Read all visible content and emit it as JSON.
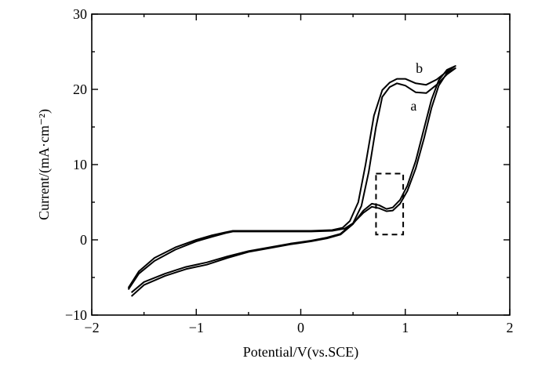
{
  "chart_data": {
    "type": "line",
    "xlabel": "Potential/V(vs.SCE)",
    "ylabel": "Current/(mA·cm⁻²)",
    "xlim": [
      -2,
      2
    ],
    "ylim": [
      -10,
      30
    ],
    "xticks": [
      -2,
      -1,
      0,
      1,
      2
    ],
    "xtick_labels": [
      "−2",
      "−1",
      "0",
      "1",
      "2"
    ],
    "yticks": [
      -10,
      0,
      10,
      20,
      30
    ],
    "ytick_labels": [
      "−10",
      "0",
      "10",
      "20",
      "30"
    ],
    "grid": false,
    "series": [
      {
        "name": "a",
        "forward": [
          [
            -1.62,
            -7.0
          ],
          [
            -1.5,
            -5.6
          ],
          [
            -1.3,
            -4.5
          ],
          [
            -1.1,
            -3.6
          ],
          [
            -0.9,
            -3.0
          ],
          [
            -0.7,
            -2.2
          ],
          [
            -0.5,
            -1.5
          ],
          [
            -0.3,
            -1.0
          ],
          [
            -0.1,
            -0.5
          ],
          [
            0.1,
            -0.1
          ],
          [
            0.25,
            0.3
          ],
          [
            0.38,
            0.8
          ],
          [
            0.5,
            2.2
          ],
          [
            0.6,
            3.6
          ],
          [
            0.68,
            4.4
          ],
          [
            0.75,
            4.2
          ],
          [
            0.82,
            3.8
          ],
          [
            0.88,
            3.9
          ],
          [
            0.95,
            4.8
          ],
          [
            1.02,
            6.5
          ],
          [
            1.1,
            9.5
          ],
          [
            1.18,
            13.5
          ],
          [
            1.25,
            17.5
          ],
          [
            1.32,
            20.5
          ],
          [
            1.4,
            22.2
          ],
          [
            1.48,
            22.8
          ]
        ],
        "reverse": [
          [
            1.48,
            22.8
          ],
          [
            1.4,
            22.0
          ],
          [
            1.3,
            20.6
          ],
          [
            1.2,
            19.5
          ],
          [
            1.1,
            19.6
          ],
          [
            1.0,
            20.5
          ],
          [
            0.92,
            20.8
          ],
          [
            0.85,
            20.3
          ],
          [
            0.78,
            19.0
          ],
          [
            0.72,
            15.0
          ],
          [
            0.65,
            9.0
          ],
          [
            0.58,
            4.5
          ],
          [
            0.5,
            2.2
          ],
          [
            0.42,
            1.5
          ],
          [
            0.3,
            1.2
          ],
          [
            0.1,
            1.1
          ],
          [
            -0.2,
            1.1
          ],
          [
            -0.5,
            1.1
          ],
          [
            -0.65,
            1.1
          ],
          [
            -0.72,
            0.9
          ],
          [
            -0.85,
            0.4
          ],
          [
            -1.0,
            -0.2
          ],
          [
            -1.2,
            -1.3
          ],
          [
            -1.4,
            -2.8
          ],
          [
            -1.55,
            -4.5
          ],
          [
            -1.65,
            -6.6
          ]
        ]
      },
      {
        "name": "b",
        "forward": [
          [
            -1.62,
            -7.5
          ],
          [
            -1.5,
            -6.0
          ],
          [
            -1.3,
            -4.8
          ],
          [
            -1.1,
            -3.9
          ],
          [
            -0.9,
            -3.3
          ],
          [
            -0.7,
            -2.4
          ],
          [
            -0.5,
            -1.6
          ],
          [
            -0.3,
            -1.1
          ],
          [
            -0.1,
            -0.6
          ],
          [
            0.1,
            -0.2
          ],
          [
            0.25,
            0.2
          ],
          [
            0.38,
            0.7
          ],
          [
            0.5,
            2.1
          ],
          [
            0.6,
            3.9
          ],
          [
            0.68,
            4.8
          ],
          [
            0.75,
            4.6
          ],
          [
            0.82,
            4.1
          ],
          [
            0.88,
            4.3
          ],
          [
            0.95,
            5.3
          ],
          [
            1.02,
            7.2
          ],
          [
            1.1,
            10.5
          ],
          [
            1.18,
            14.8
          ],
          [
            1.25,
            18.6
          ],
          [
            1.32,
            21.2
          ],
          [
            1.4,
            22.6
          ],
          [
            1.48,
            23.1
          ]
        ],
        "reverse": [
          [
            1.48,
            23.1
          ],
          [
            1.4,
            22.4
          ],
          [
            1.3,
            21.3
          ],
          [
            1.2,
            20.6
          ],
          [
            1.1,
            20.8
          ],
          [
            1.0,
            21.4
          ],
          [
            0.92,
            21.4
          ],
          [
            0.85,
            20.9
          ],
          [
            0.78,
            19.9
          ],
          [
            0.7,
            16.5
          ],
          [
            0.62,
            10.0
          ],
          [
            0.55,
            5.0
          ],
          [
            0.47,
            2.5
          ],
          [
            0.4,
            1.6
          ],
          [
            0.3,
            1.3
          ],
          [
            0.1,
            1.2
          ],
          [
            -0.2,
            1.2
          ],
          [
            -0.5,
            1.2
          ],
          [
            -0.65,
            1.2
          ],
          [
            -0.72,
            1.0
          ],
          [
            -0.85,
            0.6
          ],
          [
            -1.0,
            0.0
          ],
          [
            -1.2,
            -1.0
          ],
          [
            -1.4,
            -2.4
          ],
          [
            -1.55,
            -4.2
          ],
          [
            -1.65,
            -6.4
          ]
        ]
      }
    ],
    "annotations": [
      {
        "type": "dashed-box",
        "x": [
          0.72,
          0.98
        ],
        "y": [
          0.7,
          8.8
        ]
      },
      {
        "type": "label",
        "text": "b",
        "x": 1.1,
        "y": 22.2
      },
      {
        "type": "label",
        "text": "a",
        "x": 1.05,
        "y": 17.2
      }
    ]
  }
}
